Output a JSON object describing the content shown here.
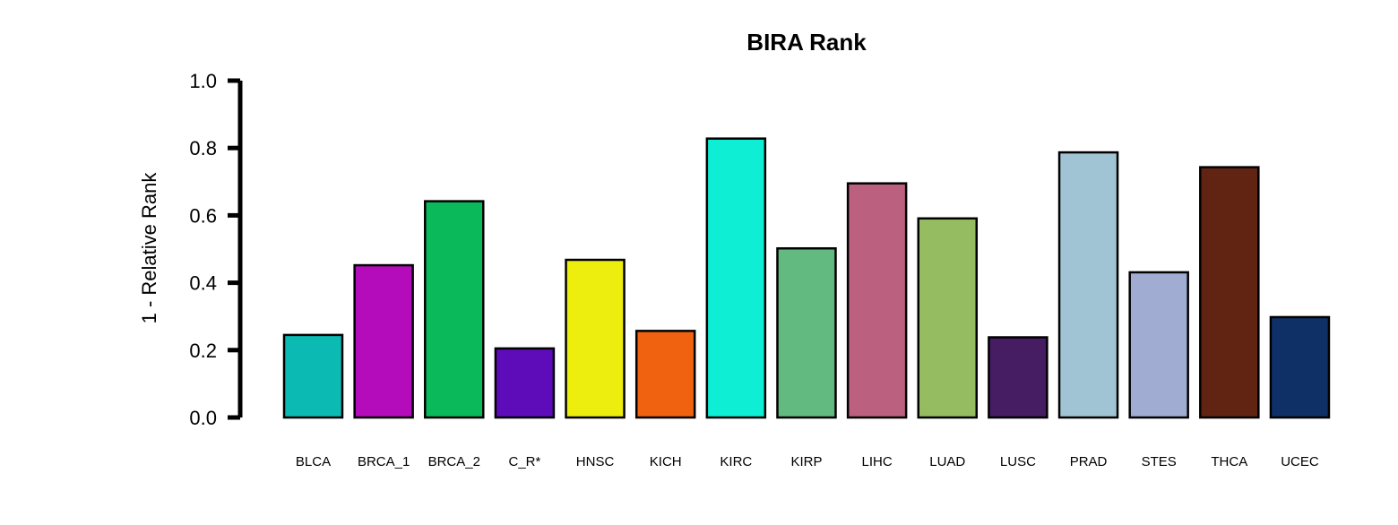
{
  "chart_data": {
    "type": "bar",
    "title": "BIRA Rank",
    "xlabel": "",
    "ylabel": "1 - Relative Rank",
    "ylim": [
      0,
      1
    ],
    "yticks": [
      "0.0",
      "0.2",
      "0.4",
      "0.6",
      "0.8",
      "1.0"
    ],
    "grid": false,
    "categories": [
      "BLCA",
      "BRCA_1",
      "BRCA_2",
      "C_R*",
      "HNSC",
      "KICH",
      "KIRC",
      "KIRP",
      "LIHC",
      "LUAD",
      "LUSC",
      "PRAD",
      "STES",
      "THCA",
      "UCEC"
    ],
    "values": [
      0.245,
      0.452,
      0.642,
      0.205,
      0.468,
      0.257,
      0.828,
      0.502,
      0.695,
      0.591,
      0.238,
      0.787,
      0.431,
      0.743,
      0.298
    ],
    "colors": [
      "#0CBAB4",
      "#B40CBA",
      "#0ABA5A",
      "#5E0CBA",
      "#EEEE0E",
      "#F0620F",
      "#0EEED4",
      "#62BA80",
      "#BC6080",
      "#96BC62",
      "#461C62",
      "#A0C4D4",
      "#A0ACD2",
      "#622412",
      "#0E3066"
    ]
  }
}
